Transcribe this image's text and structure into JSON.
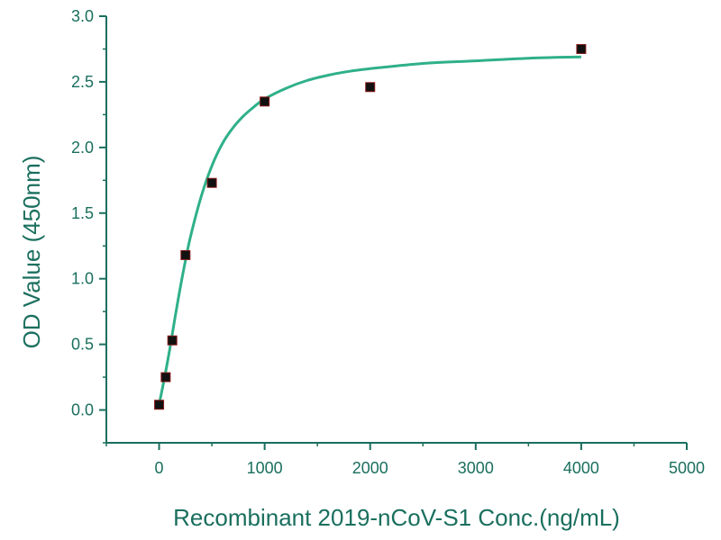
{
  "chart_data": {
    "type": "scatter",
    "title": "",
    "xlabel": "Recombinant 2019-nCoV-S1  Conc.(ng/mL)",
    "ylabel": "OD Value (450nm)",
    "xlim": [
      -500,
      5000
    ],
    "ylim": [
      -0.25,
      3.0
    ],
    "x_ticks": [
      0,
      1000,
      2000,
      3000,
      4000,
      5000
    ],
    "x_tick_labels": [
      "0",
      "1000",
      "2000",
      "3000",
      "4000",
      "5000"
    ],
    "y_ticks": [
      0.0,
      0.5,
      1.0,
      1.5,
      2.0,
      2.5,
      3.0
    ],
    "y_tick_labels": [
      "0.0",
      "0.5",
      "1.0",
      "1.5",
      "2.0",
      "2.5",
      "3.0"
    ],
    "grid": false,
    "legend": "none",
    "series": [
      {
        "marker": "square",
        "x": [
          0,
          62.5,
          125,
          250,
          500,
          1000,
          2000,
          4000
        ],
        "y": [
          0.04,
          0.25,
          0.53,
          1.18,
          1.73,
          2.35,
          2.46,
          2.75
        ]
      }
    ],
    "fit_curve": {
      "x": [
        0,
        50,
        100,
        150,
        200,
        250,
        300,
        400,
        500,
        600,
        700,
        800,
        900,
        1000,
        1200,
        1400,
        1600,
        1800,
        2000,
        2500,
        3000,
        3500,
        4000
      ],
      "y": [
        0.04,
        0.24,
        0.46,
        0.7,
        0.93,
        1.14,
        1.33,
        1.63,
        1.86,
        2.03,
        2.15,
        2.24,
        2.31,
        2.37,
        2.45,
        2.51,
        2.55,
        2.58,
        2.6,
        2.64,
        2.66,
        2.68,
        2.69
      ]
    },
    "colors": {
      "axis": "#1a6f5e",
      "curve": "#2fb08a",
      "marker": "#111111",
      "marker_edge": "#8a1a1a"
    }
  }
}
